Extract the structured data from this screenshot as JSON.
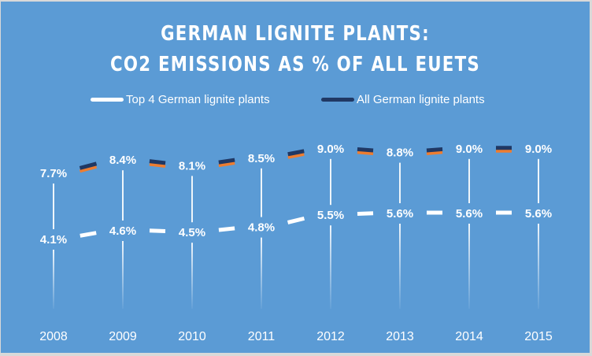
{
  "chart_data": {
    "type": "line",
    "title_lines": [
      "GERMAN LIGNITE PLANTS:",
      "CO2 EMISSIONS AS % OF ALL EUETS"
    ],
    "xlabel": "",
    "ylabel": "",
    "categories": [
      "2008",
      "2009",
      "2010",
      "2011",
      "2012",
      "2013",
      "2014",
      "2015"
    ],
    "series": [
      {
        "name": "Top 4 German lignite plants",
        "values": [
          4.1,
          4.6,
          4.5,
          4.8,
          5.5,
          5.6,
          5.6,
          5.6
        ],
        "labels": [
          "4.1%",
          "4.6%",
          "4.5%",
          "4.8%",
          "5.5%",
          "5.6%",
          "5.6%",
          "5.6%"
        ],
        "color": "#ffffff"
      },
      {
        "name": "All German lignite plants",
        "values": [
          7.7,
          8.4,
          8.1,
          8.5,
          9.0,
          8.8,
          9.0,
          9.0
        ],
        "labels": [
          "7.7%",
          "8.4%",
          "8.1%",
          "8.5%",
          "9.0%",
          "8.8%",
          "9.0%",
          "9.0%"
        ],
        "color": "#203864",
        "shadow_color": "#ed7d31"
      }
    ],
    "ylim": [
      0,
      10
    ],
    "grid": false,
    "drop_lines": true,
    "legend_position": "top",
    "background_color": "#5b9bd5"
  }
}
